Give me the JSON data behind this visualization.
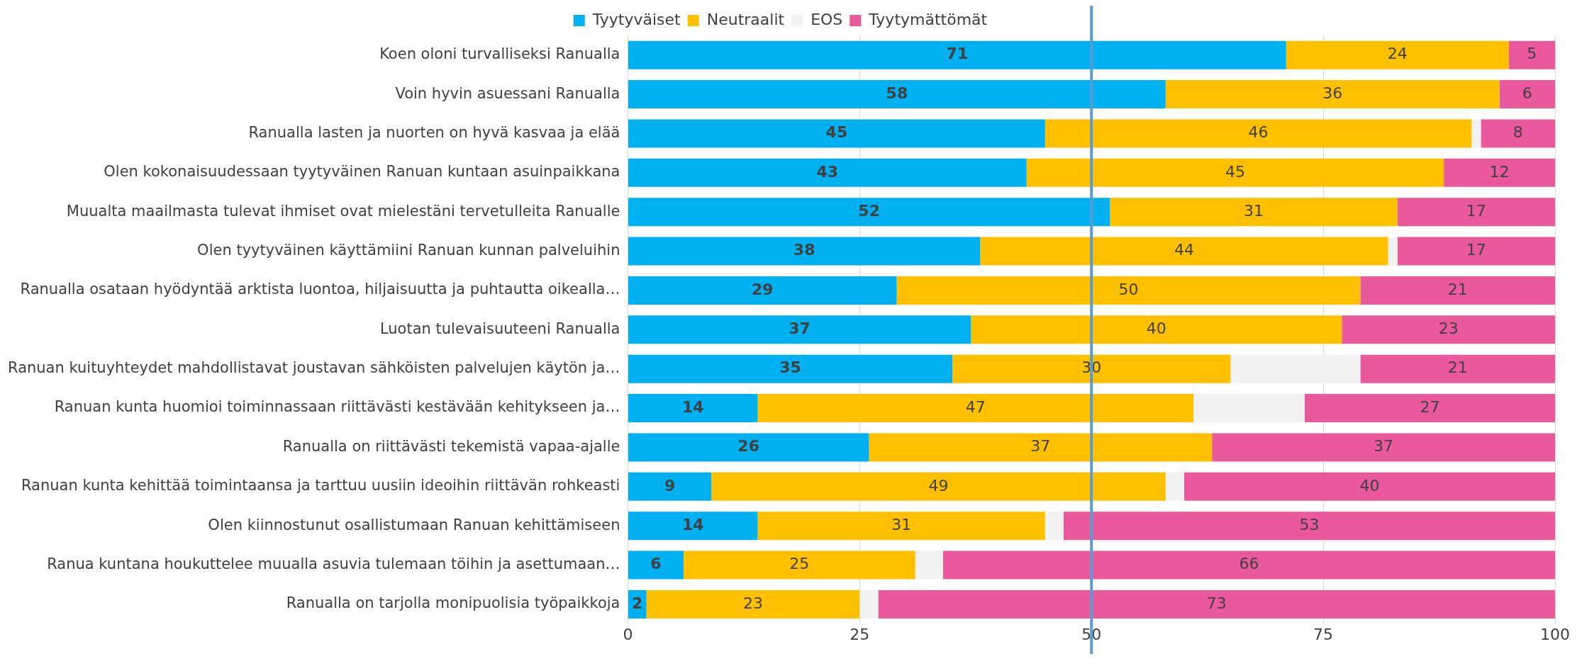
{
  "chart_data": {
    "type": "bar",
    "orientation": "horizontal",
    "stacked": true,
    "legend": "top",
    "grid": "x",
    "categories": [
      "Koen oloni turvalliseksi Ranualla",
      "Voin hyvin asuessani Ranualla",
      "Ranualla lasten ja nuorten on hyvä kasvaa ja elää",
      "Olen kokonaisuudessaan tyytyväinen Ranuan kuntaan asuinpaikkana",
      "Muualta maailmasta tulevat ihmiset ovat mielestäni tervetulleita Ranualle",
      "Olen tyytyväinen käyttämiini Ranuan kunnan palveluihin",
      "Ranualla osataan hyödyntää arktista luontoa, hiljaisuutta ja puhtautta oikealla…",
      "Luotan tulevaisuuteeni Ranualla",
      "Ranuan kuituyhteydet mahdollistavat joustavan sähköisten palvelujen käytön ja…",
      "Ranuan kunta huomioi toiminnassaan riittävästi kestävään kehitykseen ja…",
      "Ranualla on riittävästi tekemistä vapaa-ajalle",
      "Ranuan kunta kehittää toimintaansa ja tarttuu uusiin ideoihin riittävän rohkeasti",
      "Olen kiinnostunut osallistumaan Ranuan kehittämiseen",
      "Ranua kuntana houkuttelee muualla asuvia tulemaan töihin ja asettumaan…",
      "Ranualla on tarjolla monipuolisia työpaikkoja"
    ],
    "series": [
      {
        "name": "Tyytyväiset",
        "color": "#00b0f0",
        "values": [
          71,
          58,
          45,
          43,
          52,
          38,
          29,
          37,
          35,
          14,
          26,
          9,
          14,
          6,
          2
        ],
        "value_labels": [
          "71",
          "58",
          "45",
          "43",
          "52",
          "38",
          "29",
          "37",
          "35",
          "14",
          "26",
          "9",
          "14",
          "6",
          "2"
        ]
      },
      {
        "name": "Neutraalit",
        "color": "#ffc000",
        "values": [
          24,
          36,
          46,
          45,
          31,
          44,
          50,
          40,
          30,
          47,
          37,
          49,
          31,
          25,
          23
        ],
        "value_labels": [
          "24",
          "36",
          "46",
          "45",
          "31",
          "44",
          "50",
          "40",
          "30",
          "47",
          "37",
          "49",
          "31",
          "25",
          "23"
        ]
      },
      {
        "name": "EOS",
        "color": "#f2f2f2",
        "values": [
          0,
          0,
          1,
          0,
          0,
          1,
          0,
          0,
          14,
          12,
          0,
          2,
          2,
          3,
          2
        ]
      },
      {
        "name": "Tyytymättömät",
        "color": "#ea599c",
        "values": [
          5,
          6,
          8,
          12,
          17,
          17,
          21,
          23,
          21,
          27,
          37,
          40,
          53,
          66,
          73
        ],
        "value_labels": [
          "5",
          "6",
          "8",
          "12",
          "17",
          "17",
          "21",
          "23",
          "21",
          "27",
          "37",
          "40",
          "53",
          "66",
          "73"
        ]
      }
    ],
    "xlim": [
      0,
      100
    ],
    "xticks": [
      0,
      25,
      50,
      75,
      100
    ],
    "ref_lines": [
      {
        "axis": "x",
        "value": 50,
        "color": "#5b9bd5"
      }
    ]
  }
}
